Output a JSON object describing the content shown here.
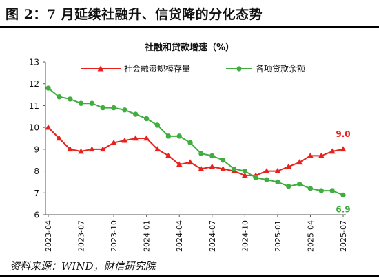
{
  "figure": {
    "title": "图 2：7 月延续社融升、信贷降的分化态势",
    "source": "资料来源：WIND，财信研究院"
  },
  "colors": {
    "series1": "#e8211d",
    "series2": "#3fae3f",
    "axis": "#555555"
  },
  "chart_data": {
    "type": "line",
    "title": "社融和贷款增速（%）",
    "xlabel": "",
    "ylabel": "",
    "ylim": [
      6,
      13
    ],
    "yticks": [
      6,
      7,
      8,
      9,
      10,
      11,
      12,
      13
    ],
    "grid": false,
    "legend": "top",
    "x": [
      "2023-04",
      "2023-05",
      "2023-06",
      "2023-07",
      "2023-08",
      "2023-09",
      "2023-10",
      "2023-11",
      "2023-12",
      "2024-01",
      "2024-02",
      "2024-03",
      "2024-04",
      "2024-05",
      "2024-06",
      "2024-07",
      "2024-08",
      "2024-09",
      "2024-10",
      "2024-11",
      "2024-12",
      "2025-01",
      "2025-02",
      "2025-03",
      "2025-04",
      "2025-05",
      "2025-06",
      "2025-07"
    ],
    "xtick_labels": [
      "2023-04",
      "2023-07",
      "2023-10",
      "2024-01",
      "2024-04",
      "2024-07",
      "2024-10",
      "2025-01",
      "2025-04",
      "2025-07"
    ],
    "series": [
      {
        "name": "社会融资规模存量",
        "marker": "triangle",
        "values": [
          10.0,
          9.5,
          9.0,
          8.9,
          9.0,
          9.0,
          9.3,
          9.4,
          9.5,
          9.5,
          9.0,
          8.7,
          8.3,
          8.4,
          8.1,
          8.2,
          8.1,
          8.0,
          7.8,
          7.8,
          8.0,
          8.0,
          8.2,
          8.4,
          8.7,
          8.7,
          8.9,
          9.0
        ],
        "end_label": "9.0"
      },
      {
        "name": "各项贷款余额",
        "marker": "circle",
        "values": [
          11.8,
          11.4,
          11.3,
          11.1,
          11.1,
          10.9,
          10.9,
          10.8,
          10.6,
          10.4,
          10.1,
          9.6,
          9.6,
          9.3,
          8.8,
          8.7,
          8.5,
          8.1,
          8.0,
          7.7,
          7.6,
          7.5,
          7.3,
          7.4,
          7.2,
          7.1,
          7.1,
          6.9
        ],
        "end_label": "6.9"
      }
    ]
  }
}
